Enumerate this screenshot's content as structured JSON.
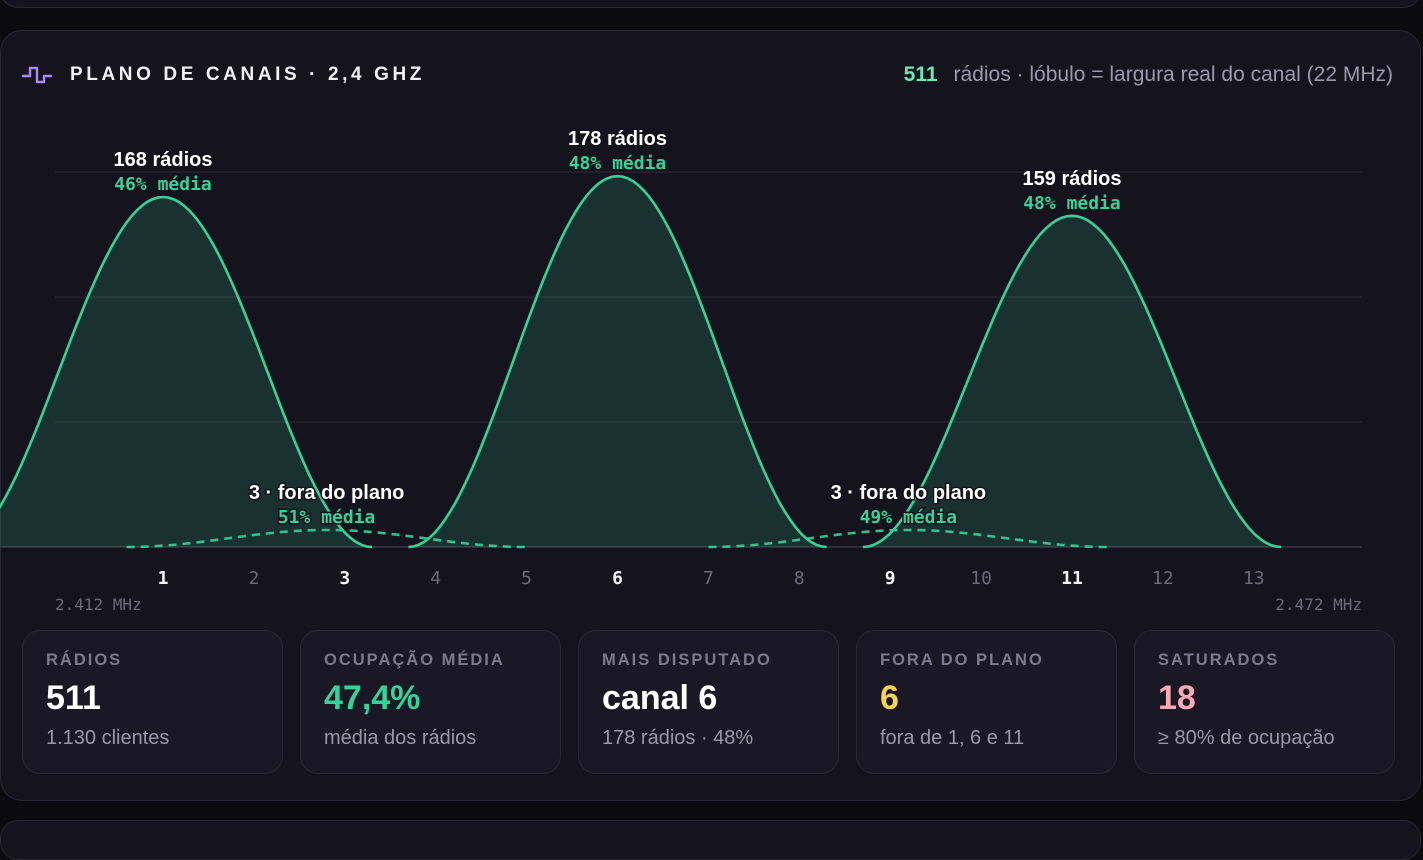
{
  "header": {
    "icon": "signal-wave-icon",
    "title": "PLANO DE CANAIS · 2,4 GHZ",
    "summary_count": "511",
    "summary_text": "rádios · lóbulo = largura real do canal (22 MHz)"
  },
  "colors": {
    "accent": "#34d399",
    "title_icon": "#a78bfa",
    "warning": "#fcd34d",
    "danger": "#f9a8b4"
  },
  "chart_data": {
    "type": "area",
    "x_axis": {
      "label_left": "2.412 MHz",
      "label_right": "2.472 MHz",
      "channels": [
        "1",
        "2",
        "3",
        "4",
        "5",
        "6",
        "7",
        "8",
        "9",
        "10",
        "11",
        "12",
        "13"
      ],
      "highlighted": [
        "1",
        "3",
        "6",
        "9",
        "11"
      ],
      "range": [
        1,
        13
      ]
    },
    "y_axis": {
      "range": [
        0,
        180
      ],
      "grid": true
    },
    "lobes": [
      {
        "channel": 1,
        "radios": 168,
        "label": "168 rádios",
        "occupancy": "46% média",
        "style": "solid"
      },
      {
        "channel": 2.8,
        "radios": 3,
        "label": "3 · fora do plano",
        "occupancy": "51% média",
        "style": "dashed"
      },
      {
        "channel": 6,
        "radios": 178,
        "label": "178 rádios",
        "occupancy": "48% média",
        "style": "solid"
      },
      {
        "channel": 9.2,
        "radios": 3,
        "label": "3 · fora do plano",
        "occupancy": "49% média",
        "style": "dashed"
      },
      {
        "channel": 11,
        "radios": 159,
        "label": "159 rádios",
        "occupancy": "48% média",
        "style": "solid"
      }
    ]
  },
  "stats": [
    {
      "label": "RÁDIOS",
      "value": "511",
      "sub": "1.130 clientes",
      "color": "#ffffff"
    },
    {
      "label": "OCUPAÇÃO MÉDIA",
      "value": "47,4%",
      "sub": "média dos rádios",
      "color": "#34d399"
    },
    {
      "label": "MAIS DISPUTADO",
      "value": "canal 6",
      "sub": "178 rádios · 48%",
      "color": "#ffffff"
    },
    {
      "label": "FORA DO PLANO",
      "value": "6",
      "sub": "fora de 1, 6 e 11",
      "color": "#fcd34d"
    },
    {
      "label": "SATURADOS",
      "value": "18",
      "sub": "≥ 80% de ocupação",
      "color": "#f9a8b4"
    }
  ]
}
